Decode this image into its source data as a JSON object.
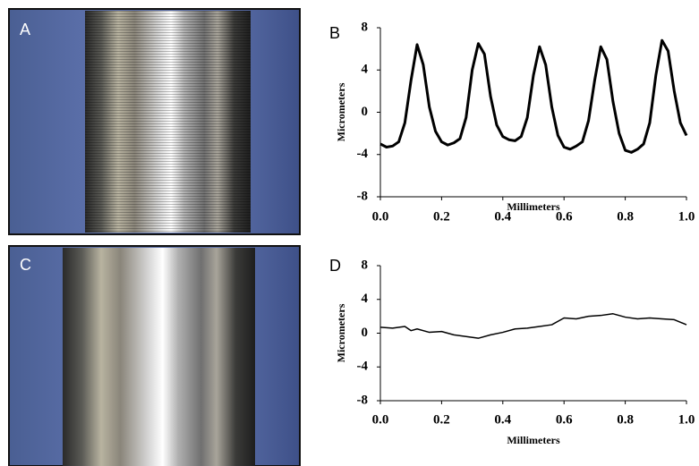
{
  "photos": [
    {
      "label": "A"
    },
    {
      "label": "C"
    }
  ],
  "chart_data": [
    {
      "type": "line",
      "panel_label": "B",
      "xlabel": "Millimeters",
      "ylabel": "Micrometers",
      "x": [
        0,
        0.02,
        0.04,
        0.06,
        0.08,
        0.1,
        0.12,
        0.14,
        0.16,
        0.18,
        0.2,
        0.22,
        0.24,
        0.26,
        0.28,
        0.3,
        0.32,
        0.34,
        0.36,
        0.38,
        0.4,
        0.42,
        0.44,
        0.46,
        0.48,
        0.5,
        0.52,
        0.54,
        0.56,
        0.58,
        0.6,
        0.62,
        0.64,
        0.66,
        0.68,
        0.7,
        0.72,
        0.74,
        0.76,
        0.78,
        0.8,
        0.82,
        0.84,
        0.86,
        0.88,
        0.9,
        0.92,
        0.94,
        0.96,
        0.98,
        1.0
      ],
      "series": [
        {
          "color": "#000000",
          "values": [
            -3.0,
            -3.3,
            -3.2,
            -2.8,
            -1.0,
            3.0,
            6.4,
            4.5,
            0.5,
            -1.8,
            -2.8,
            -3.1,
            -2.9,
            -2.5,
            -0.5,
            4.0,
            6.5,
            5.5,
            1.5,
            -1.2,
            -2.3,
            -2.6,
            -2.7,
            -2.3,
            -0.5,
            3.5,
            6.2,
            4.5,
            0.5,
            -2.2,
            -3.3,
            -3.5,
            -3.2,
            -2.8,
            -0.8,
            3.0,
            6.2,
            5.0,
            1.0,
            -2.0,
            -3.6,
            -3.8,
            -3.5,
            -3.0,
            -1.0,
            3.5,
            6.8,
            5.8,
            2.0,
            -1.0,
            -2.2
          ]
        }
      ],
      "xlim": [
        0,
        1
      ],
      "ylim": [
        -8,
        8
      ],
      "xticks": [
        {
          "value": 0,
          "label": "0.0"
        },
        {
          "value": 0.2,
          "label": "0.2"
        },
        {
          "value": 0.4,
          "label": "0.4"
        },
        {
          "value": 0.6,
          "label": "0.6"
        },
        {
          "value": 0.8,
          "label": "0.8"
        },
        {
          "value": 1,
          "label": "1.0"
        }
      ],
      "yticks": [
        -8,
        -4,
        0,
        4,
        8
      ]
    },
    {
      "type": "line",
      "panel_label": "D",
      "xlabel": "Millimeters",
      "ylabel": "Micrometers",
      "x": [
        0,
        0.04,
        0.08,
        0.1,
        0.12,
        0.16,
        0.2,
        0.24,
        0.28,
        0.32,
        0.36,
        0.4,
        0.44,
        0.48,
        0.52,
        0.56,
        0.6,
        0.64,
        0.68,
        0.72,
        0.76,
        0.8,
        0.84,
        0.88,
        0.92,
        0.96,
        1.0
      ],
      "series": [
        {
          "color": "#000000",
          "values": [
            0.7,
            0.6,
            0.8,
            0.3,
            0.5,
            0.1,
            0.2,
            -0.2,
            -0.4,
            -0.6,
            -0.2,
            0.1,
            0.5,
            0.6,
            0.8,
            1.0,
            1.8,
            1.7,
            2.0,
            2.1,
            2.3,
            1.9,
            1.7,
            1.8,
            1.7,
            1.6,
            1.0
          ]
        }
      ],
      "xlim": [
        0,
        1
      ],
      "ylim": [
        -8,
        8
      ],
      "xticks": [
        {
          "value": 0,
          "label": "0.0"
        },
        {
          "value": 0.2,
          "label": "0.2"
        },
        {
          "value": 0.4,
          "label": "0.4"
        },
        {
          "value": 0.6,
          "label": "0.6"
        },
        {
          "value": 0.8,
          "label": "0.8"
        },
        {
          "value": 1,
          "label": "1.0"
        }
      ],
      "yticks": [
        -8,
        -4,
        0,
        4,
        8
      ]
    }
  ]
}
